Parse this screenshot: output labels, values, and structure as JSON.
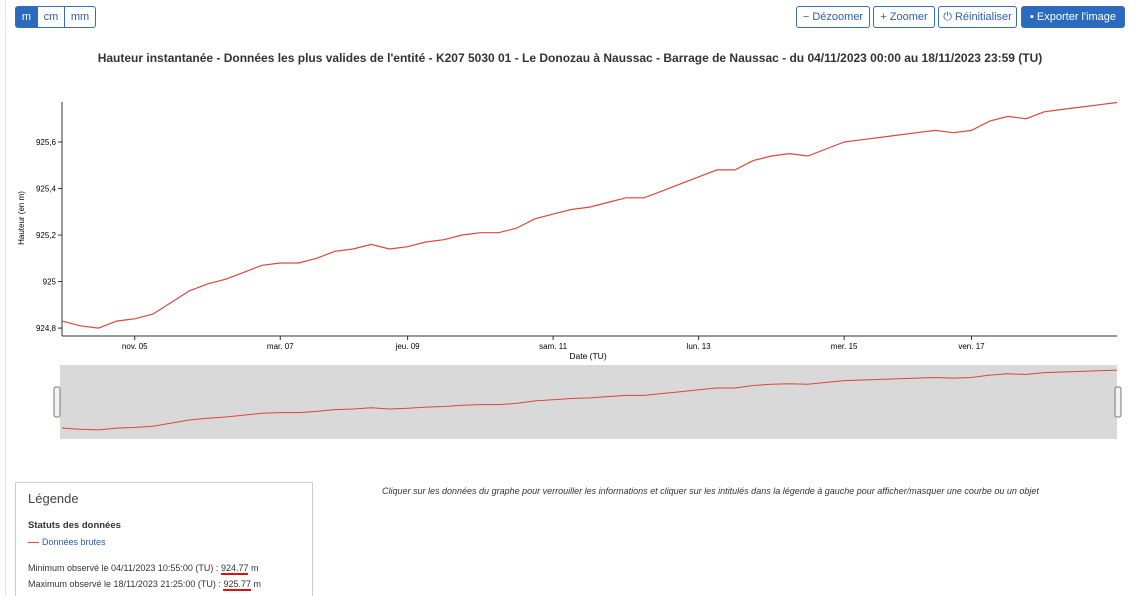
{
  "toolbar": {
    "units": [
      "m",
      "cm",
      "mm"
    ],
    "buttons": [
      "Dézoomer",
      "Zoomer",
      "Réinitialiser",
      "Exporter l'image"
    ]
  },
  "chart_data": {
    "type": "line",
    "title": "Hauteur instantanée - Données les plus valides de l'entité - K207 5030 01 - Le Donozau à Naussac - Barrage de Naussac - du 04/11/2023 00:00 au 18/11/2023 23:59 (TU)",
    "y_label": "Hauteur (en m)",
    "x_label": "Date (TU)",
    "categories": [
      null,
      null,
      null,
      null,
      "nov. 05",
      null,
      null,
      null,
      null,
      null,
      null,
      null,
      "mar. 07",
      null,
      null,
      null,
      null,
      null,
      null,
      "jeu. 09",
      null,
      null,
      null,
      null,
      null,
      null,
      null,
      "sam. 11",
      null,
      null,
      null,
      null,
      null,
      null,
      null,
      "lun. 13",
      null,
      null,
      null,
      null,
      null,
      null,
      null,
      "mer. 15",
      null,
      null,
      null,
      null,
      null,
      null,
      "ven. 17",
      null,
      null,
      null,
      null,
      null,
      null,
      null,
      null
    ],
    "series": [
      {
        "name": "Données brutes",
        "color": "#d9483b",
        "values": [
          924.83,
          924.81,
          924.8,
          924.83,
          924.84,
          924.86,
          924.91,
          924.96,
          924.99,
          925.01,
          925.04,
          925.07,
          925.08,
          925.08,
          925.1,
          925.13,
          925.14,
          925.16,
          925.14,
          925.15,
          925.17,
          925.18,
          925.2,
          925.21,
          925.21,
          925.23,
          925.27,
          925.29,
          925.31,
          925.32,
          925.34,
          925.36,
          925.36,
          925.39,
          925.42,
          925.45,
          925.48,
          925.48,
          925.52,
          925.54,
          925.55,
          925.54,
          925.57,
          925.6,
          925.61,
          925.62,
          925.63,
          925.64,
          925.65,
          925.64,
          925.65,
          925.69,
          925.71,
          925.7,
          925.73,
          925.74,
          925.75,
          925.76,
          925.77
        ]
      }
    ],
    "ylim": [
      924.766,
      925.772
    ],
    "yticks": [
      {
        "value": 924.8,
        "label": "924,8"
      },
      925,
      {
        "value": 925.2,
        "label": "925,2"
      },
      {
        "value": 925.4,
        "label": "925,4"
      },
      {
        "value": 925.6,
        "label": "925,6"
      }
    ],
    "grid": false
  },
  "legend": {
    "title": "Légende",
    "section": "Statuts des données",
    "item": "Données brutes",
    "minimum": {
      "label": "Minimum observé le 04/11/2023 10:55:00 (TU) :",
      "value": 924.77,
      "unit": "m"
    },
    "maximum": {
      "label": "Maximum observé le 18/11/2023 21:25:00 (TU) :",
      "value": 925.77,
      "unit": "m"
    }
  },
  "hint": "Cliquer sur les données du graphe pour verrouiller les informations et cliquer sur les intitulés dans la légende à gauche pour afficher/masquer une courbe ou un objet"
}
